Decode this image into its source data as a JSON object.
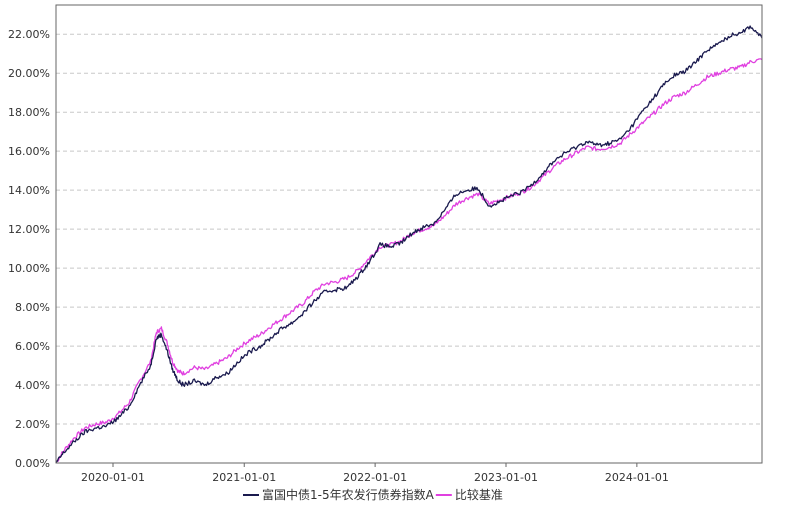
{
  "chart_data": {
    "type": "line",
    "title": "",
    "xlabel": "",
    "ylabel": "",
    "x_ticks": [
      "2020-01-01",
      "2021-01-01",
      "2022-01-01",
      "2023-01-01",
      "2024-01-01"
    ],
    "y_ticks": [
      "0.00%",
      "2.00%",
      "4.00%",
      "6.00%",
      "8.00%",
      "10.00%",
      "12.00%",
      "14.00%",
      "16.00%",
      "18.00%",
      "20.00%",
      "22.00%"
    ],
    "xlim": [
      "2019-07-26",
      "2024-12-15"
    ],
    "ylim": [
      0,
      23.5
    ],
    "grid": "horizontal dashed",
    "legend_position": "bottom-center",
    "series": [
      {
        "name": "富国中债1-5年农发行债券指数A",
        "color": "#1a1a4e",
        "points": [
          [
            "2019-07-26",
            0.0
          ],
          [
            "2019-08-15",
            0.5
          ],
          [
            "2019-09-15",
            1.1
          ],
          [
            "2019-10-15",
            1.6
          ],
          [
            "2019-11-15",
            1.8
          ],
          [
            "2019-12-15",
            1.9
          ],
          [
            "2020-01-15",
            2.3
          ],
          [
            "2020-02-15",
            2.9
          ],
          [
            "2020-03-15",
            4.0
          ],
          [
            "2020-04-15",
            5.0
          ],
          [
            "2020-05-01",
            6.4
          ],
          [
            "2020-05-15",
            6.6
          ],
          [
            "2020-06-01",
            5.7
          ],
          [
            "2020-06-15",
            4.8
          ],
          [
            "2020-07-01",
            4.2
          ],
          [
            "2020-07-15",
            4.0
          ],
          [
            "2020-08-15",
            4.2
          ],
          [
            "2020-09-15",
            4.0
          ],
          [
            "2020-10-15",
            4.4
          ],
          [
            "2020-11-15",
            4.6
          ],
          [
            "2020-12-15",
            5.2
          ],
          [
            "2021-01-15",
            5.7
          ],
          [
            "2021-02-15",
            6.0
          ],
          [
            "2021-03-15",
            6.4
          ],
          [
            "2021-04-15",
            6.9
          ],
          [
            "2021-05-15",
            7.2
          ],
          [
            "2021-06-15",
            7.7
          ],
          [
            "2021-07-15",
            8.3
          ],
          [
            "2021-08-15",
            8.8
          ],
          [
            "2021-09-15",
            8.9
          ],
          [
            "2021-10-15",
            9.0
          ],
          [
            "2021-11-15",
            9.6
          ],
          [
            "2021-12-15",
            10.3
          ],
          [
            "2022-01-15",
            11.2
          ],
          [
            "2022-02-15",
            11.1
          ],
          [
            "2022-03-15",
            11.3
          ],
          [
            "2022-04-15",
            11.8
          ],
          [
            "2022-05-15",
            12.1
          ],
          [
            "2022-06-15",
            12.3
          ],
          [
            "2022-07-15",
            13.0
          ],
          [
            "2022-08-15",
            13.8
          ],
          [
            "2022-09-15",
            14.0
          ],
          [
            "2022-10-15",
            14.1
          ],
          [
            "2022-11-15",
            13.2
          ],
          [
            "2022-12-15",
            13.4
          ],
          [
            "2023-01-15",
            13.7
          ],
          [
            "2023-02-15",
            13.9
          ],
          [
            "2023-03-15",
            14.3
          ],
          [
            "2023-04-15",
            14.9
          ],
          [
            "2023-05-15",
            15.5
          ],
          [
            "2023-06-15",
            15.9
          ],
          [
            "2023-07-15",
            16.2
          ],
          [
            "2023-08-15",
            16.5
          ],
          [
            "2023-09-15",
            16.3
          ],
          [
            "2023-10-15",
            16.4
          ],
          [
            "2023-11-15",
            16.6
          ],
          [
            "2023-12-15",
            17.2
          ],
          [
            "2024-01-15",
            18.0
          ],
          [
            "2024-02-15",
            18.7
          ],
          [
            "2024-03-15",
            19.4
          ],
          [
            "2024-04-15",
            19.9
          ],
          [
            "2024-05-15",
            20.1
          ],
          [
            "2024-06-15",
            20.6
          ],
          [
            "2024-07-15",
            21.2
          ],
          [
            "2024-08-15",
            21.5
          ],
          [
            "2024-09-15",
            21.9
          ],
          [
            "2024-10-15",
            22.1
          ],
          [
            "2024-11-15",
            22.4
          ],
          [
            "2024-12-15",
            21.8
          ]
        ]
      },
      {
        "name": "比较基准",
        "color": "#e040e0",
        "points": [
          [
            "2019-07-26",
            0.0
          ],
          [
            "2019-08-15",
            0.6
          ],
          [
            "2019-09-15",
            1.3
          ],
          [
            "2019-10-15",
            1.8
          ],
          [
            "2019-11-15",
            2.0
          ],
          [
            "2019-12-15",
            2.1
          ],
          [
            "2020-01-15",
            2.5
          ],
          [
            "2020-02-15",
            3.1
          ],
          [
            "2020-03-15",
            4.2
          ],
          [
            "2020-04-15",
            5.2
          ],
          [
            "2020-05-01",
            6.7
          ],
          [
            "2020-05-15",
            6.9
          ],
          [
            "2020-06-01",
            6.1
          ],
          [
            "2020-06-15",
            5.2
          ],
          [
            "2020-07-01",
            4.7
          ],
          [
            "2020-07-15",
            4.6
          ],
          [
            "2020-08-15",
            4.9
          ],
          [
            "2020-09-15",
            4.8
          ],
          [
            "2020-10-15",
            5.1
          ],
          [
            "2020-11-15",
            5.4
          ],
          [
            "2020-12-15",
            5.9
          ],
          [
            "2021-01-15",
            6.3
          ],
          [
            "2021-02-15",
            6.6
          ],
          [
            "2021-03-15",
            7.0
          ],
          [
            "2021-04-15",
            7.4
          ],
          [
            "2021-05-15",
            7.8
          ],
          [
            "2021-06-15",
            8.2
          ],
          [
            "2021-07-15",
            8.8
          ],
          [
            "2021-08-15",
            9.2
          ],
          [
            "2021-09-15",
            9.3
          ],
          [
            "2021-10-15",
            9.5
          ],
          [
            "2021-11-15",
            9.9
          ],
          [
            "2021-12-15",
            10.5
          ],
          [
            "2022-01-15",
            11.1
          ],
          [
            "2022-02-15",
            11.2
          ],
          [
            "2022-03-15",
            11.4
          ],
          [
            "2022-04-15",
            11.8
          ],
          [
            "2022-05-15",
            12.0
          ],
          [
            "2022-06-15",
            12.2
          ],
          [
            "2022-07-15",
            12.7
          ],
          [
            "2022-08-15",
            13.3
          ],
          [
            "2022-09-15",
            13.6
          ],
          [
            "2022-10-15",
            13.8
          ],
          [
            "2022-11-15",
            13.3
          ],
          [
            "2022-12-15",
            13.5
          ],
          [
            "2023-01-15",
            13.7
          ],
          [
            "2023-02-15",
            13.9
          ],
          [
            "2023-03-15",
            14.2
          ],
          [
            "2023-04-15",
            14.7
          ],
          [
            "2023-05-15",
            15.2
          ],
          [
            "2023-06-15",
            15.6
          ],
          [
            "2023-07-15",
            15.9
          ],
          [
            "2023-08-15",
            16.2
          ],
          [
            "2023-09-15",
            16.1
          ],
          [
            "2023-10-15",
            16.2
          ],
          [
            "2023-11-15",
            16.4
          ],
          [
            "2023-12-15",
            16.9
          ],
          [
            "2024-01-15",
            17.4
          ],
          [
            "2024-02-15",
            17.9
          ],
          [
            "2024-03-15",
            18.4
          ],
          [
            "2024-04-15",
            18.8
          ],
          [
            "2024-05-15",
            19.0
          ],
          [
            "2024-06-15",
            19.4
          ],
          [
            "2024-07-15",
            19.8
          ],
          [
            "2024-08-15",
            20.0
          ],
          [
            "2024-09-15",
            20.2
          ],
          [
            "2024-10-15",
            20.3
          ],
          [
            "2024-11-15",
            20.6
          ],
          [
            "2024-12-15",
            20.7
          ]
        ]
      }
    ]
  }
}
